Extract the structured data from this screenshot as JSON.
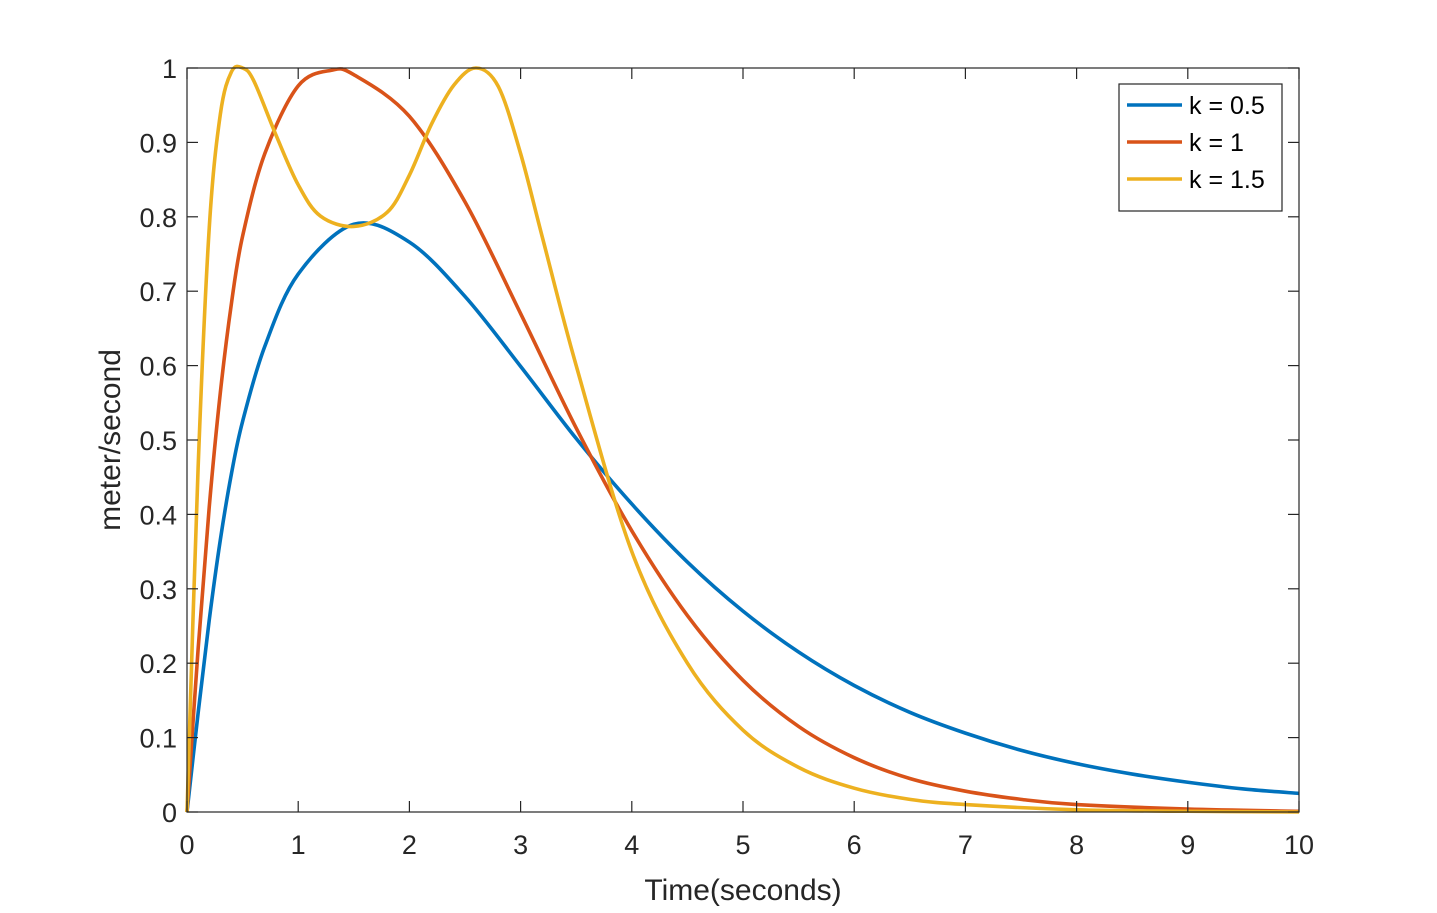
{
  "chart_data": {
    "type": "line",
    "title": "",
    "xlabel": "Time(seconds)",
    "ylabel": "meter/second",
    "xlim": [
      0,
      10
    ],
    "ylim": [
      0,
      1
    ],
    "grid": false,
    "legend_position": "top-right",
    "x_ticks": [
      "0",
      "1",
      "2",
      "3",
      "4",
      "5",
      "6",
      "7",
      "8",
      "9",
      "10"
    ],
    "y_ticks": [
      "0",
      "0.1",
      "0.2",
      "0.3",
      "0.4",
      "0.5",
      "0.6",
      "0.7",
      "0.8",
      "0.9",
      "1"
    ],
    "series": [
      {
        "name": "k = 0.5",
        "color": "#0072BD",
        "x": [
          0,
          0.1,
          0.2,
          0.3,
          0.4,
          0.5,
          0.7,
          1.0,
          1.5,
          2.0,
          2.5,
          3.0,
          3.5,
          4.0,
          4.5,
          5.0,
          5.5,
          6.0,
          6.5,
          7.0,
          7.5,
          8.0,
          8.5,
          9.0,
          9.5,
          10.0
        ],
        "y": [
          0,
          0.133,
          0.258,
          0.366,
          0.455,
          0.525,
          0.626,
          0.723,
          0.79,
          0.766,
          0.693,
          0.599,
          0.502,
          0.414,
          0.336,
          0.27,
          0.215,
          0.17,
          0.134,
          0.106,
          0.083,
          0.065,
          0.051,
          0.04,
          0.031,
          0.025
        ]
      },
      {
        "name": "k = 1",
        "color": "#D95319",
        "x": [
          0,
          0.1,
          0.2,
          0.3,
          0.4,
          0.5,
          0.7,
          1.0,
          1.3,
          1.5,
          2.0,
          2.5,
          3.0,
          3.5,
          4.0,
          4.5,
          5.0,
          5.5,
          6.0,
          6.5,
          7.0,
          7.5,
          8.0,
          9.0,
          10.0
        ],
        "y": [
          0,
          0.219,
          0.41,
          0.564,
          0.684,
          0.774,
          0.885,
          0.976,
          0.997,
          0.991,
          0.935,
          0.82,
          0.67,
          0.516,
          0.378,
          0.264,
          0.177,
          0.115,
          0.073,
          0.045,
          0.028,
          0.017,
          0.01,
          0.004,
          0.001
        ]
      },
      {
        "name": "k = 1.5",
        "color": "#EDB120",
        "x": [
          0,
          0.1,
          0.2,
          0.3,
          0.4,
          0.5,
          0.6,
          0.8,
          1.0,
          1.2,
          1.5,
          1.8,
          2.0,
          2.2,
          2.4,
          2.6,
          2.8,
          3.0,
          3.2,
          3.5,
          4.0,
          4.5,
          5.0,
          5.5,
          6.0,
          6.5,
          7.0,
          8.0,
          9.0,
          10.0
        ],
        "y": [
          0,
          0.463,
          0.785,
          0.938,
          0.995,
          1.0,
          0.983,
          0.91,
          0.843,
          0.801,
          0.787,
          0.806,
          0.856,
          0.925,
          0.977,
          1.0,
          0.975,
          0.885,
          0.77,
          0.6,
          0.35,
          0.2,
          0.11,
          0.06,
          0.032,
          0.017,
          0.01,
          0.003,
          0.001,
          0.0
        ]
      }
    ]
  }
}
